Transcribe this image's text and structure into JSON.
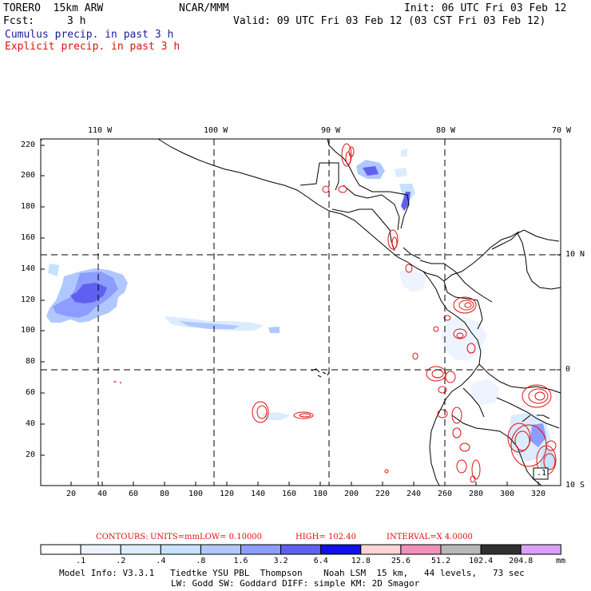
{
  "header": {
    "model": "TORERO  15km ARW",
    "org": "NCAR/MMM",
    "init": "Init: 06 UTC Fri 03 Feb 12",
    "fcst_label": "Fcst:",
    "fcst_value": "3 h",
    "valid": "Valid: 09 UTC Fri 03 Feb 12 (03 CST Fri 03 Feb 12)",
    "field1": "Cumulus precip. in past 3 h",
    "field2": "Explicit precip. in past 3 h"
  },
  "top_lon_labels": [
    "110 W",
    "100 W",
    "90 W",
    "80 W",
    "70 W"
  ],
  "left_y_labels": [
    "220",
    "200",
    "180",
    "160",
    "140",
    "120",
    "100",
    "80",
    "60",
    "40",
    "20"
  ],
  "bottom_x_labels": [
    "20",
    "40",
    "60",
    "80",
    "100",
    "120",
    "140",
    "160",
    "180",
    "200",
    "220",
    "240",
    "260",
    "280",
    "300",
    "320"
  ],
  "right_lat_labels": [
    "10 N",
    "0",
    "10 S"
  ],
  "contour_info": {
    "contours": "CONTOURS:",
    "units": "UNITS=mm",
    "low": "LOW= 0.10000",
    "high": "HIGH= 102.40",
    "interval": "INTERVAL=X 4.0000"
  },
  "colorbar": {
    "colors": [
      "#ffffff",
      "#eef4ff",
      "#dcebff",
      "#c6e2ff",
      "#b0c8ff",
      "#8c9cff",
      "#6060f0",
      "#1010e8",
      "#ffd4d4",
      "#f090b8",
      "#b8b8b8",
      "#303030",
      "#d8a0f8"
    ],
    "labels": [
      ".1",
      ".2",
      ".4",
      ".8",
      "1.6",
      "3.2",
      "6.4",
      "12.8",
      "25.6",
      "51.2",
      "102.4",
      "204.8"
    ],
    "unit": "mm"
  },
  "footer": {
    "line1": "Model Info: V3.3.1   Tiedtke YSU PBL  Thompson    Noah LSM  15 km,   44 levels,   73 sec",
    "line2": "LW: Godd SW: Goddard DIFF: simple KM: 2D Smagor"
  },
  "box_label": ".1",
  "colors": {
    "explicit_contour": "#e01010",
    "cumulus_text": "#1a1aa0",
    "coast": "#000000"
  }
}
